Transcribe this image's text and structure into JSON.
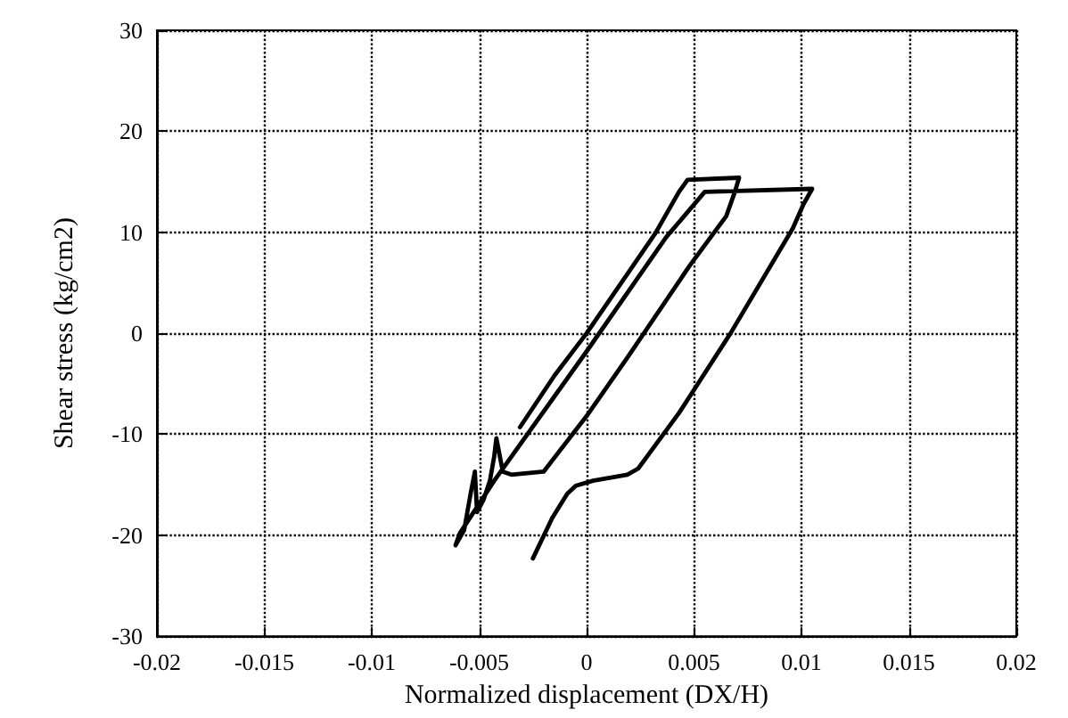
{
  "chart_data": {
    "type": "line",
    "xlabel": "Normalized displacement (DX/H)",
    "ylabel": "Shear stress (kg/cm2)",
    "xlim": [
      -0.02,
      0.02
    ],
    "ylim": [
      -30,
      30
    ],
    "xticks": [
      -0.02,
      -0.015,
      -0.01,
      -0.005,
      0,
      0.005,
      0.01,
      0.015,
      0.02
    ],
    "yticks": [
      -30,
      -20,
      -10,
      0,
      10,
      20,
      30
    ],
    "grid": true,
    "marker": "none",
    "line_style": "solid",
    "series": [
      {
        "color": "#000000",
        "x": [
          -0.0031,
          -0.0015,
          0,
          0.0032,
          0.0043,
          0.0047,
          0.0071,
          0.0069,
          0.0065,
          0.0048,
          0.0019,
          0,
          -0.002,
          -0.0035,
          -0.0039,
          -0.0042,
          -0.0043,
          -0.0045,
          -0.0048,
          -0.0051,
          -0.0052,
          -0.0054,
          -0.0057,
          -0.0061,
          -0.0059,
          -0.0043,
          0,
          0.0037,
          0.0055,
          0.0105,
          0.0101,
          0.0096,
          0.0067,
          0.0043,
          0.0024,
          0.0019,
          0.0003,
          -0.0005,
          -0.0009,
          -0.0016,
          -0.0025
        ],
        "values": [
          -9.3,
          -4.2,
          0,
          9.9,
          14,
          15.2,
          15.4,
          14,
          11.6,
          6.7,
          -2.4,
          -8.2,
          -13.7,
          -14,
          -13.7,
          -10.4,
          -12.2,
          -14.6,
          -16.5,
          -17.7,
          -13.7,
          -15.9,
          -19.5,
          -21,
          -19.8,
          -14.6,
          -1.8,
          9.5,
          14,
          14.3,
          12.8,
          10.4,
          0,
          -7.9,
          -13.4,
          -14,
          -14.6,
          -15.1,
          -15.9,
          -18.3,
          -22.3
        ]
      }
    ]
  }
}
